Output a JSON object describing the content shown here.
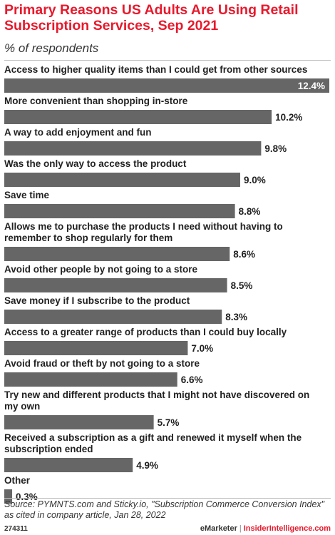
{
  "header": {
    "title": "Primary Reasons US Adults Are Using Retail Subscription Services, Sep 2021",
    "subtitle": "% of respondents"
  },
  "chart_data": {
    "type": "bar",
    "orientation": "horizontal",
    "value_suffix": "%",
    "bar_color": "#666666",
    "categories": [
      "Access to higher quality items than I could get from other sources",
      "More convenient than shopping in-store",
      "A way to add enjoyment and fun",
      "Was the only way to access the product",
      "Save time",
      "Allows me to purchase the products I need without having to remember to shop regularly for them",
      "Avoid other people by not going to a store",
      "Save money if I subscribe to the product",
      "Access to a greater range of products than I could buy locally",
      "Avoid fraud or theft by not going to a store",
      "Try new and different products that I might not have discovered on my own",
      "Received a subscription as a gift and renewed it myself when the subscription ended",
      "Other"
    ],
    "values": [
      12.4,
      10.2,
      9.8,
      9.0,
      8.8,
      8.6,
      8.5,
      8.3,
      7.0,
      6.6,
      5.7,
      4.9,
      0.3
    ],
    "value_labels": [
      "12.4%",
      "10.2%",
      "9.8%",
      "9.0%",
      "8.8%",
      "8.6%",
      "8.5%",
      "8.3%",
      "7.0%",
      "6.6%",
      "5.7%",
      "4.9%",
      "0.3%"
    ],
    "xlim": [
      0,
      12.4
    ],
    "grid": false,
    "legend": "none"
  },
  "footer": {
    "source": "Source: PYMNTS.com and Sticky.io, \"Subscription Commerce Conversion Index\" as cited in company article, Jan 28, 2022",
    "chart_id": "274311",
    "brand_primary": "eMarketer",
    "brand_separator": "|",
    "brand_secondary": "InsiderIntelligence.com"
  }
}
